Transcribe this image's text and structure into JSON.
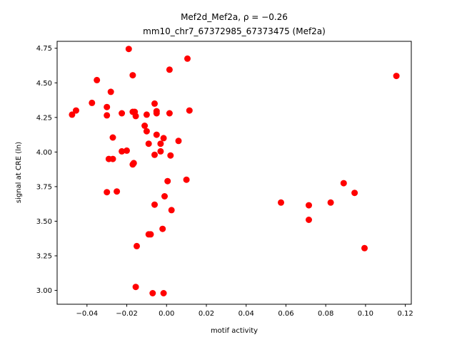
{
  "chart_data": {
    "type": "scatter",
    "title_line1": "Mef2d_Mef2a, ρ = −0.26",
    "title_line2": "mm10_chr7_67372985_67373475 (Mef2a)",
    "xlabel": "motif activity",
    "ylabel": "signal at CRE (ln)",
    "xlim": [
      -0.055,
      0.123
    ],
    "ylim": [
      2.9,
      4.8
    ],
    "x_ticks": [
      -0.04,
      -0.02,
      0.0,
      0.02,
      0.04,
      0.06,
      0.08,
      0.1,
      0.12
    ],
    "x_tick_labels": [
      "−0.04",
      "−0.02",
      "0.00",
      "0.02",
      "0.04",
      "0.06",
      "0.08",
      "0.10",
      "0.12"
    ],
    "y_ticks": [
      3.0,
      3.25,
      3.5,
      3.75,
      4.0,
      4.25,
      4.5,
      4.75
    ],
    "y_tick_labels": [
      "3.00",
      "3.25",
      "3.50",
      "3.75",
      "4.00",
      "4.25",
      "4.50",
      "4.75"
    ],
    "grid": false,
    "marker_color": "#ff0000",
    "points": [
      {
        "x": -0.0475,
        "y": 4.27
      },
      {
        "x": -0.0455,
        "y": 4.3
      },
      {
        "x": -0.0375,
        "y": 4.355
      },
      {
        "x": -0.035,
        "y": 4.52
      },
      {
        "x": -0.03,
        "y": 4.325
      },
      {
        "x": -0.03,
        "y": 4.265
      },
      {
        "x": -0.028,
        "y": 4.435
      },
      {
        "x": -0.027,
        "y": 4.105
      },
      {
        "x": -0.029,
        "y": 3.95
      },
      {
        "x": -0.027,
        "y": 3.95
      },
      {
        "x": -0.03,
        "y": 3.71
      },
      {
        "x": -0.025,
        "y": 3.715
      },
      {
        "x": -0.0225,
        "y": 4.28
      },
      {
        "x": -0.0225,
        "y": 4.005
      },
      {
        "x": -0.02,
        "y": 4.01
      },
      {
        "x": -0.019,
        "y": 4.745
      },
      {
        "x": -0.017,
        "y": 4.555
      },
      {
        "x": -0.017,
        "y": 4.29
      },
      {
        "x": -0.016,
        "y": 4.29
      },
      {
        "x": -0.0155,
        "y": 4.26
      },
      {
        "x": -0.017,
        "y": 3.91
      },
      {
        "x": -0.0165,
        "y": 3.92
      },
      {
        "x": -0.015,
        "y": 3.32
      },
      {
        "x": -0.0155,
        "y": 3.025
      },
      {
        "x": -0.01,
        "y": 4.27
      },
      {
        "x": -0.011,
        "y": 4.19
      },
      {
        "x": -0.01,
        "y": 4.15
      },
      {
        "x": -0.009,
        "y": 4.06
      },
      {
        "x": -0.009,
        "y": 3.405
      },
      {
        "x": -0.008,
        "y": 3.405
      },
      {
        "x": -0.007,
        "y": 2.98
      },
      {
        "x": -0.006,
        "y": 4.35
      },
      {
        "x": -0.005,
        "y": 4.295
      },
      {
        "x": -0.005,
        "y": 4.28
      },
      {
        "x": -0.005,
        "y": 4.125
      },
      {
        "x": -0.006,
        "y": 3.98
      },
      {
        "x": -0.006,
        "y": 3.62
      },
      {
        "x": -0.003,
        "y": 4.005
      },
      {
        "x": -0.003,
        "y": 4.06
      },
      {
        "x": -0.0015,
        "y": 4.1
      },
      {
        "x": -0.001,
        "y": 3.68
      },
      {
        "x": -0.002,
        "y": 3.445
      },
      {
        "x": -0.0015,
        "y": 2.98
      },
      {
        "x": 0.0015,
        "y": 4.595
      },
      {
        "x": 0.0015,
        "y": 4.28
      },
      {
        "x": 0.002,
        "y": 3.975
      },
      {
        "x": 0.0005,
        "y": 3.79
      },
      {
        "x": 0.0025,
        "y": 3.58
      },
      {
        "x": 0.006,
        "y": 4.08
      },
      {
        "x": 0.0105,
        "y": 4.675
      },
      {
        "x": 0.0115,
        "y": 4.3
      },
      {
        "x": 0.01,
        "y": 3.8
      },
      {
        "x": 0.0575,
        "y": 3.635
      },
      {
        "x": 0.0715,
        "y": 3.615
      },
      {
        "x": 0.0715,
        "y": 3.51
      },
      {
        "x": 0.0825,
        "y": 3.635
      },
      {
        "x": 0.089,
        "y": 3.775
      },
      {
        "x": 0.0945,
        "y": 3.705
      },
      {
        "x": 0.0995,
        "y": 3.305
      },
      {
        "x": 0.1155,
        "y": 4.55
      }
    ]
  }
}
